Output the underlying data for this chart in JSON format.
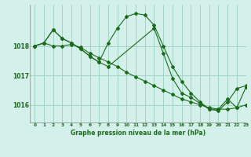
{
  "bg_color": "#d4f0ea",
  "grid_color": "#a0d4c8",
  "line_color": "#1a6b1a",
  "title": "Graphe pression niveau de la mer (hPa)",
  "xlim": [
    -0.5,
    23
  ],
  "ylim": [
    1015.4,
    1019.4
  ],
  "yticks": [
    1016,
    1017,
    1018
  ],
  "xticks": [
    0,
    1,
    2,
    3,
    4,
    5,
    6,
    7,
    8,
    9,
    10,
    11,
    12,
    13,
    14,
    15,
    16,
    17,
    18,
    19,
    20,
    21,
    22,
    23
  ],
  "line1_x": [
    0,
    1,
    2,
    3,
    4,
    5,
    6,
    7,
    8,
    9,
    10,
    11,
    12,
    13,
    14,
    15,
    16,
    17,
    18,
    19,
    20,
    21,
    22,
    23
  ],
  "line1_y": [
    1018.0,
    1018.1,
    1018.0,
    1018.0,
    1018.05,
    1017.95,
    1017.75,
    1017.6,
    1017.45,
    1017.3,
    1017.1,
    1016.95,
    1016.8,
    1016.65,
    1016.5,
    1016.35,
    1016.2,
    1016.1,
    1016.0,
    1015.9,
    1015.85,
    1015.85,
    1015.9,
    1016.0
  ],
  "line2_x": [
    0,
    1,
    2,
    3,
    4,
    5,
    6,
    7,
    8,
    9,
    10,
    11,
    12,
    13,
    14,
    15,
    16,
    17,
    18,
    19,
    20,
    21,
    22,
    23
  ],
  "line2_y": [
    1018.0,
    1018.1,
    1018.55,
    1018.25,
    1018.1,
    1017.9,
    1017.65,
    1017.45,
    1018.1,
    1018.6,
    1019.0,
    1019.1,
    1019.05,
    1018.7,
    1018.0,
    1017.3,
    1016.8,
    1016.4,
    1016.1,
    1015.85,
    1015.8,
    1016.1,
    1016.55,
    1016.65
  ],
  "line3_x": [
    0,
    1,
    2,
    3,
    4,
    5,
    6,
    7,
    8,
    13,
    14,
    15,
    16,
    17,
    18,
    19,
    20,
    21,
    22,
    23
  ],
  "line3_y": [
    1018.0,
    1018.1,
    1018.55,
    1018.25,
    1018.1,
    1017.9,
    1017.65,
    1017.45,
    1017.3,
    1018.6,
    1017.75,
    1016.9,
    1016.4,
    1016.25,
    1016.05,
    1015.85,
    1015.85,
    1016.2,
    1015.9,
    1016.6
  ]
}
